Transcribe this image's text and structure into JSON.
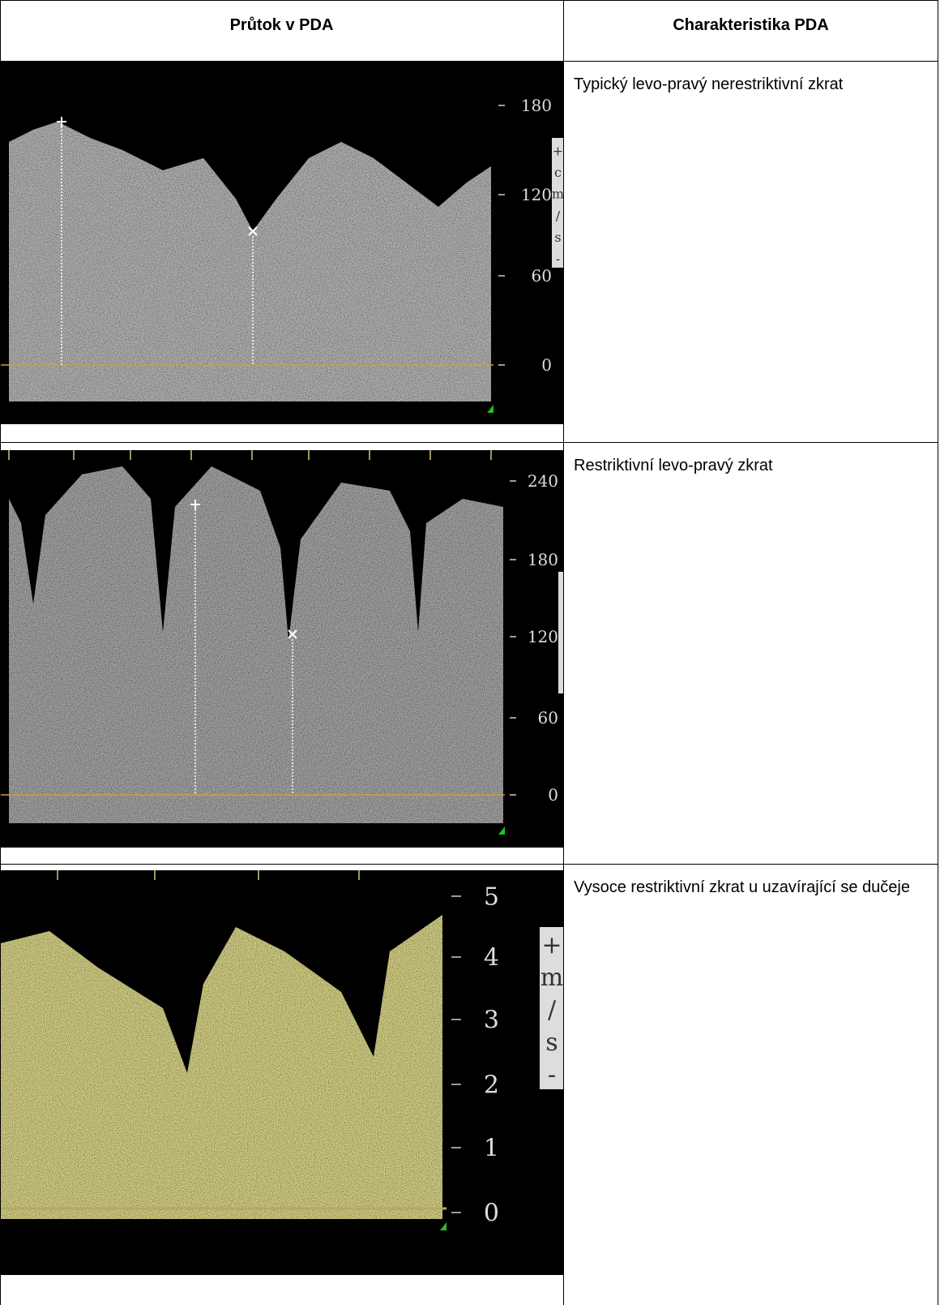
{
  "table": {
    "header": [
      "Průtok v PDA",
      "Charakteristika PDA"
    ],
    "rows": [
      {
        "image": {
          "scale": [
            "180",
            "120",
            "60",
            "0"
          ],
          "side_label": [
            "+",
            "c",
            "m",
            "/",
            "s",
            "-"
          ]
        },
        "description": "Typický levo-pravý nerestriktivní zkrat"
      },
      {
        "image": {
          "scale": [
            "240",
            "180",
            "120",
            "60",
            "0"
          ],
          "side_label": []
        },
        "description": "Restriktivní levo-pravý zkrat"
      },
      {
        "image": {
          "scale": [
            "5",
            "4",
            "3",
            "2",
            "1",
            "0"
          ],
          "side_label": [
            "+",
            "m",
            "/",
            "s",
            "-"
          ]
        },
        "description": "Vysoce restriktivní zkrat u uzavírající se dučeje"
      }
    ]
  }
}
